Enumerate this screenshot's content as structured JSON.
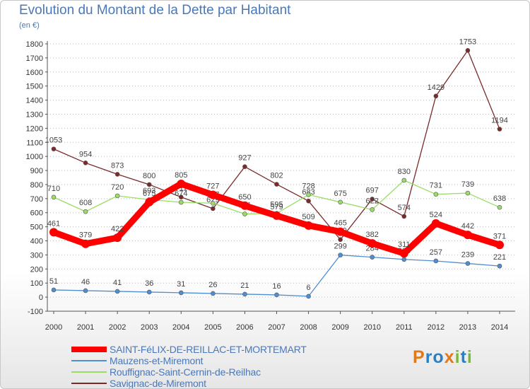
{
  "header": {
    "title": "Evolution du Montant de la Dette par Habitant",
    "subtitle": "(en €)"
  },
  "logo": {
    "text": "Proxiti"
  },
  "chart_data": {
    "type": "line",
    "title": "Evolution du Montant de la Dette par Habitant",
    "ylabel": "(en €)",
    "ylim": [
      -100,
      1800
    ],
    "yticks": [
      -100,
      0,
      100,
      200,
      300,
      400,
      500,
      600,
      700,
      800,
      900,
      1000,
      1100,
      1200,
      1300,
      1400,
      1500,
      1600,
      1700,
      1800
    ],
    "x": [
      "2000",
      "2001",
      "2002",
      "2003",
      "2004",
      "2005",
      "2006",
      "2007",
      "2008",
      "2009",
      "2010",
      "2011",
      "2012",
      "2013",
      "2014"
    ],
    "grid": "horizontal-dotted",
    "legend_position": "bottom-left",
    "series": [
      {
        "name": "SAINT-FéLIX-DE-REILLAC-ET-MORTEMART",
        "color": "#ff0000",
        "values": [
          461,
          379,
          422,
          675,
          805,
          727,
          650,
          579,
          509,
          465,
          382,
          311,
          524,
          442,
          371
        ]
      },
      {
        "name": "Mauzens-et-Miremont",
        "color": "#4f8ed0",
        "values": [
          51,
          46,
          41,
          36,
          31,
          26,
          21,
          16,
          6,
          299,
          284,
          268,
          257,
          239,
          221
        ]
      },
      {
        "name": "Rouffignac-Saint-Cernin-de-Reilhac",
        "color": "#99dd66",
        "values": [
          710,
          608,
          720,
          693,
          674,
          667,
          591,
          595,
          728,
          675,
          622,
          830,
          731,
          739,
          638
        ]
      },
      {
        "name": "Savignac-de-Miremont",
        "color": "#7a2a2a",
        "values": [
          1053,
          954,
          873,
          800,
          711,
          629,
          927,
          802,
          683,
          409,
          697,
          574,
          1429,
          1753,
          1194
        ]
      }
    ]
  }
}
